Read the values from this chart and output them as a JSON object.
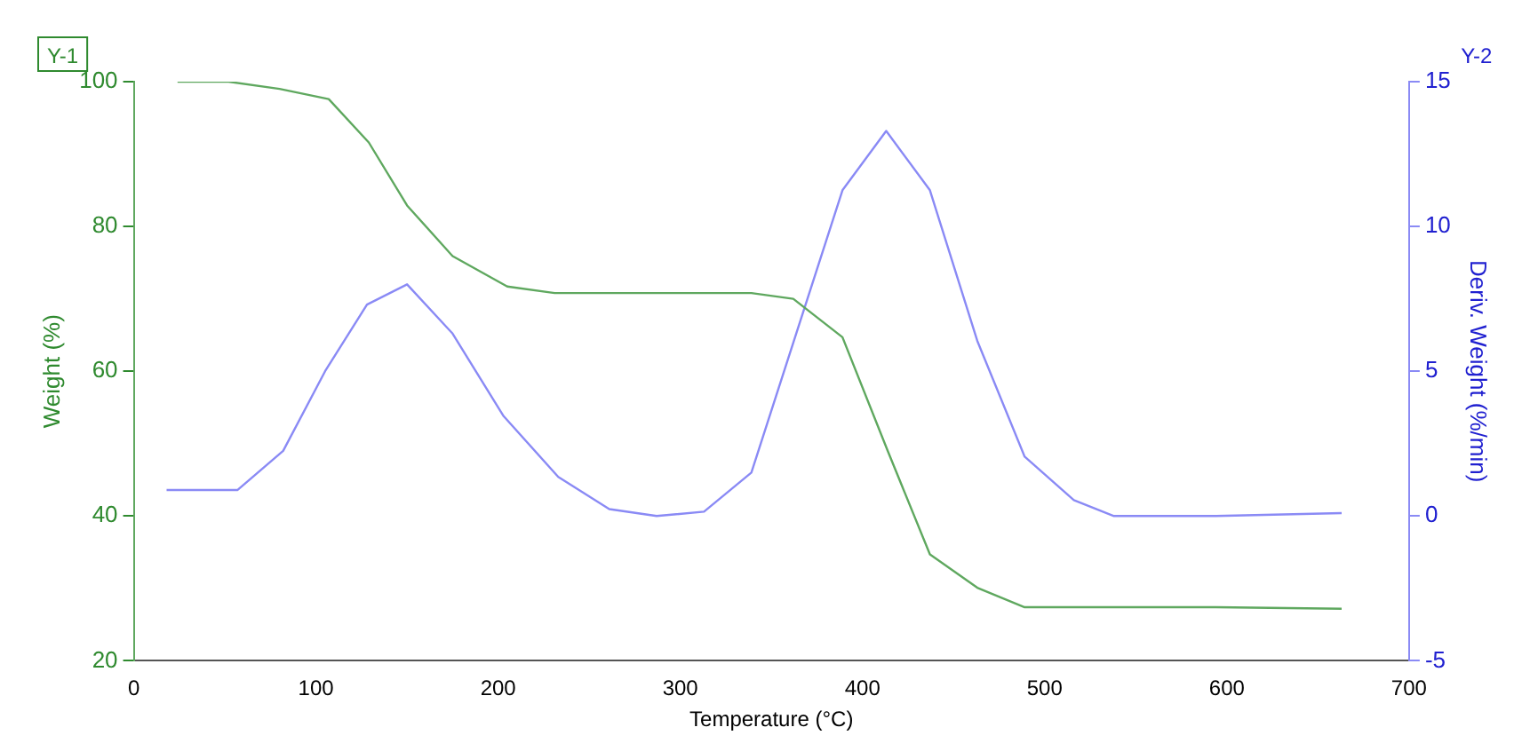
{
  "chart_data": {
    "type": "line",
    "xlabel": "Temperature (°C)",
    "ylabel": "Weight (%)",
    "y2label": "Deriv. Weight (%/min)",
    "annotations": [
      "Y-1",
      "Y-2"
    ],
    "xlim": [
      0,
      700
    ],
    "xticks": [
      0,
      100,
      200,
      300,
      400,
      500,
      600,
      700
    ],
    "ylim": [
      20,
      100
    ],
    "yticks": [
      20,
      40,
      60,
      80,
      100
    ],
    "y2lim": [
      -5,
      15
    ],
    "y2ticks": [
      -5,
      0,
      5,
      10,
      15
    ],
    "grid": false,
    "legend": false,
    "marker": "none",
    "line_style": "solid",
    "series": [
      {
        "color": "#5fa85f",
        "x": [
          24,
          52,
          80,
          107,
          129,
          150,
          175,
          205,
          231,
          339,
          362,
          389,
          414,
          437,
          463,
          489,
          538,
          594,
          663
        ],
        "values": [
          100,
          100,
          99,
          97.6,
          91.6,
          82.9,
          75.9,
          71.7,
          70.8,
          70.8,
          70,
          64.7,
          48.9,
          34.7,
          30.1,
          27.4,
          27.4,
          27.4,
          27.2
        ]
      },
      {
        "color": "#8a8af5",
        "axis": "y2",
        "x": [
          18,
          57,
          82,
          105,
          128,
          150,
          175,
          203,
          233,
          261,
          287,
          313,
          339,
          389,
          413,
          437,
          463,
          489,
          516,
          538,
          594,
          663
        ],
        "values": [
          0.9,
          0.9,
          2.25,
          5,
          7.3,
          8,
          6.3,
          3.45,
          1.35,
          0.24,
          0,
          0.15,
          1.5,
          11.25,
          13.3,
          11.25,
          6.05,
          2.05,
          0.55,
          0,
          0,
          0.1
        ]
      }
    ]
  }
}
